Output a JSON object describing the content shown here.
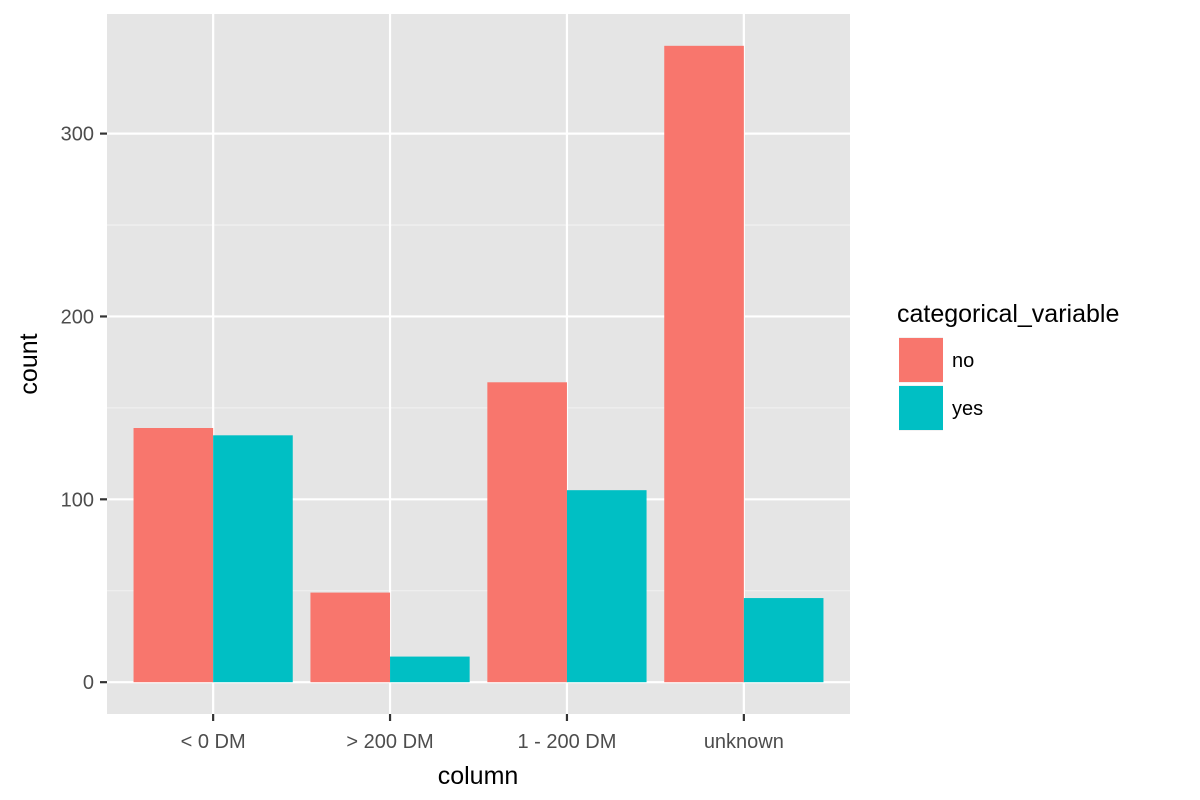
{
  "chart_data": {
    "type": "bar",
    "categories": [
      "< 0 DM",
      "> 200 DM",
      "1 - 200 DM",
      "unknown"
    ],
    "series": [
      {
        "name": "no",
        "values": [
          139,
          49,
          164,
          348
        ],
        "color": "#F8766D"
      },
      {
        "name": "yes",
        "values": [
          135,
          14,
          105,
          46
        ],
        "color": "#00BFC4"
      }
    ],
    "xlabel": "column",
    "ylabel": "count",
    "ylim": [
      -17.4,
      365.4
    ],
    "yticks": [
      0,
      100,
      200,
      300
    ],
    "ytick_labels": [
      "0",
      "100",
      "200",
      "300"
    ],
    "grid": true,
    "panel_background": "#E5E5E5",
    "legend": {
      "title": "categorical_variable",
      "position": "right"
    }
  }
}
